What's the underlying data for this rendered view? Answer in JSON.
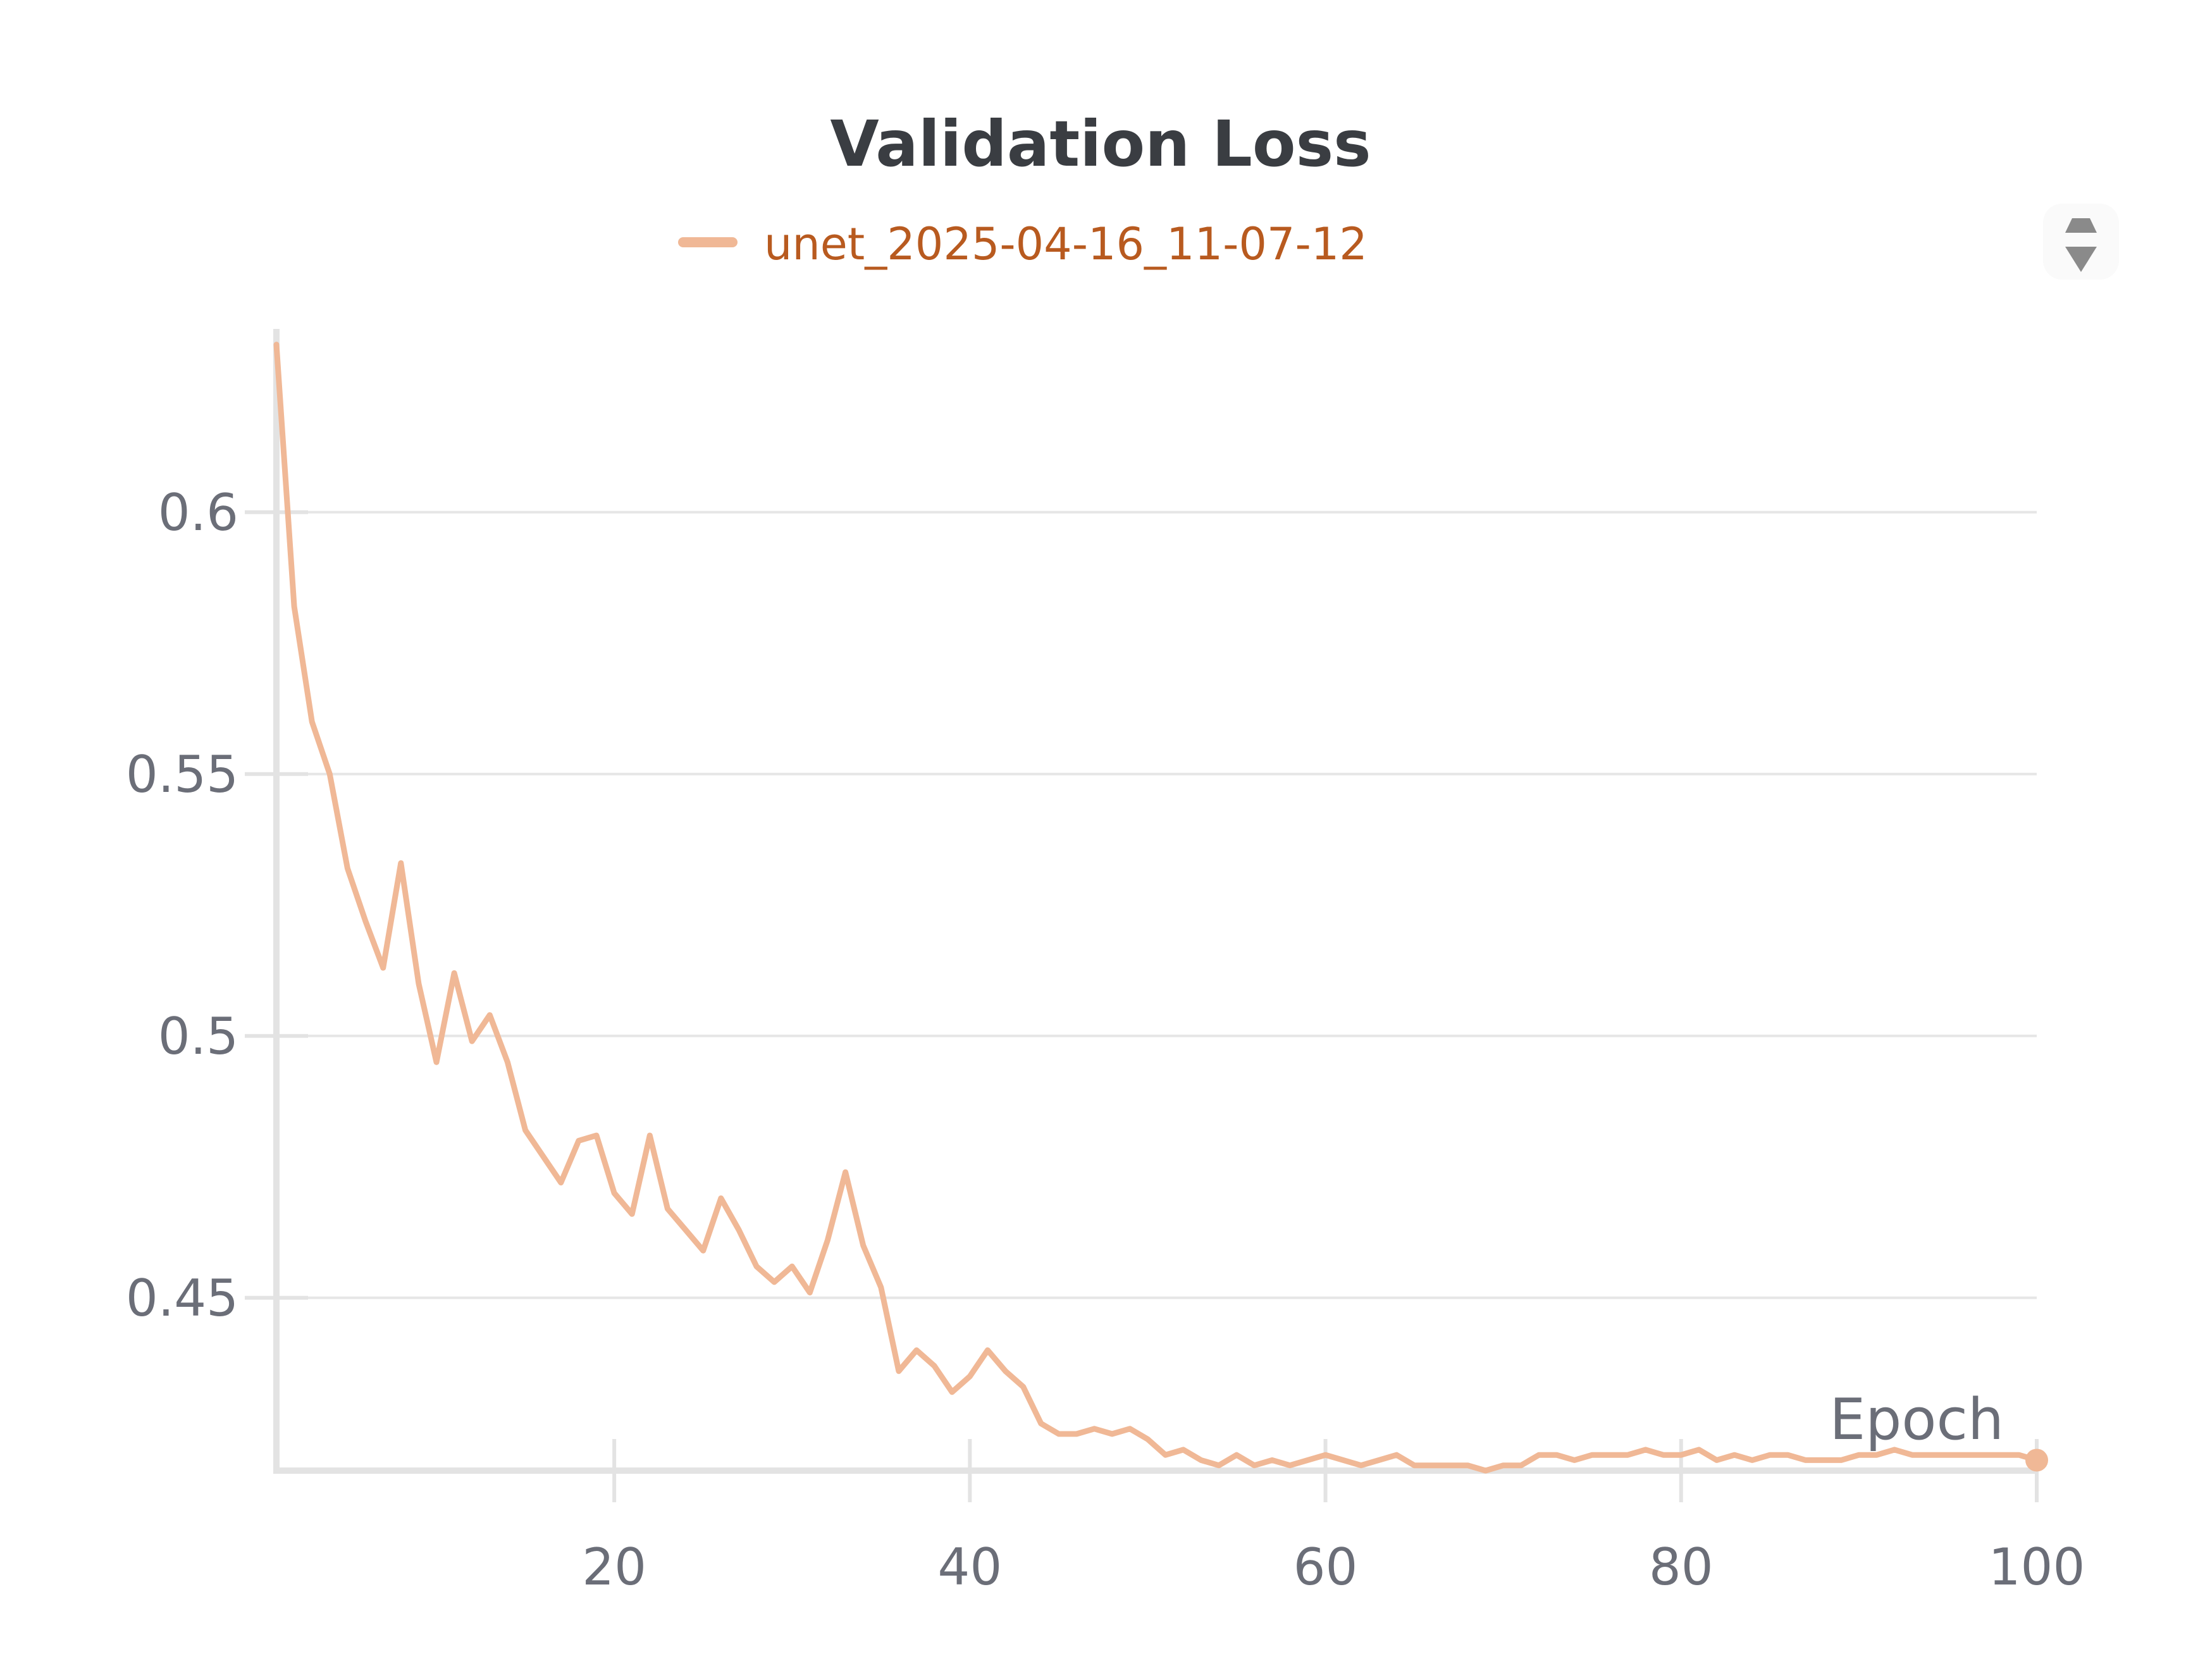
{
  "chart_data": {
    "type": "line",
    "title": "Validation Loss",
    "xlabel": "Epoch",
    "ylabel": "",
    "xlim": [
      1,
      100
    ],
    "ylim": [
      0.417,
      0.635
    ],
    "x_ticks": [
      20,
      40,
      60,
      80,
      100
    ],
    "y_ticks": [
      0.45,
      0.5,
      0.55,
      0.6
    ],
    "grid": "horizontal",
    "legend_position": "top-center",
    "series": [
      {
        "name": "unet_2025-04-16_11-07-12",
        "color": "#f0b896",
        "label_color": "#b85a1f",
        "x": [
          1,
          2,
          3,
          4,
          5,
          6,
          7,
          8,
          9,
          10,
          11,
          12,
          13,
          14,
          15,
          16,
          17,
          18,
          19,
          20,
          21,
          22,
          23,
          24,
          25,
          26,
          27,
          28,
          29,
          30,
          31,
          32,
          33,
          34,
          35,
          36,
          37,
          38,
          39,
          40,
          41,
          42,
          43,
          44,
          45,
          46,
          47,
          48,
          49,
          50,
          51,
          52,
          53,
          54,
          55,
          56,
          57,
          58,
          59,
          60,
          61,
          62,
          63,
          64,
          65,
          66,
          67,
          68,
          69,
          70,
          71,
          72,
          73,
          74,
          75,
          76,
          77,
          78,
          79,
          80,
          81,
          82,
          83,
          84,
          85,
          86,
          87,
          88,
          89,
          90,
          91,
          92,
          93,
          94,
          95,
          96,
          97,
          98,
          99,
          100
        ],
        "values": [
          0.632,
          0.582,
          0.56,
          0.55,
          0.532,
          0.522,
          0.513,
          0.533,
          0.51,
          0.495,
          0.512,
          0.499,
          0.504,
          0.495,
          0.482,
          0.477,
          0.472,
          0.48,
          0.481,
          0.47,
          0.466,
          0.481,
          0.467,
          0.463,
          0.459,
          0.469,
          0.463,
          0.456,
          0.453,
          0.456,
          0.451,
          0.461,
          0.474,
          0.46,
          0.452,
          0.436,
          0.44,
          0.437,
          0.432,
          0.435,
          0.44,
          0.436,
          0.433,
          0.426,
          0.424,
          0.424,
          0.425,
          0.424,
          0.425,
          0.423,
          0.42,
          0.421,
          0.419,
          0.418,
          0.42,
          0.418,
          0.419,
          0.418,
          0.419,
          0.42,
          0.419,
          0.418,
          0.419,
          0.42,
          0.418,
          0.418,
          0.418,
          0.418,
          0.417,
          0.418,
          0.418,
          0.42,
          0.42,
          0.419,
          0.42,
          0.42,
          0.42,
          0.421,
          0.42,
          0.42,
          0.421,
          0.419,
          0.42,
          0.419,
          0.42,
          0.42,
          0.419,
          0.419,
          0.419,
          0.42,
          0.42,
          0.421,
          0.42,
          0.42,
          0.42,
          0.42,
          0.42,
          0.42,
          0.42,
          0.419
        ]
      }
    ]
  }
}
